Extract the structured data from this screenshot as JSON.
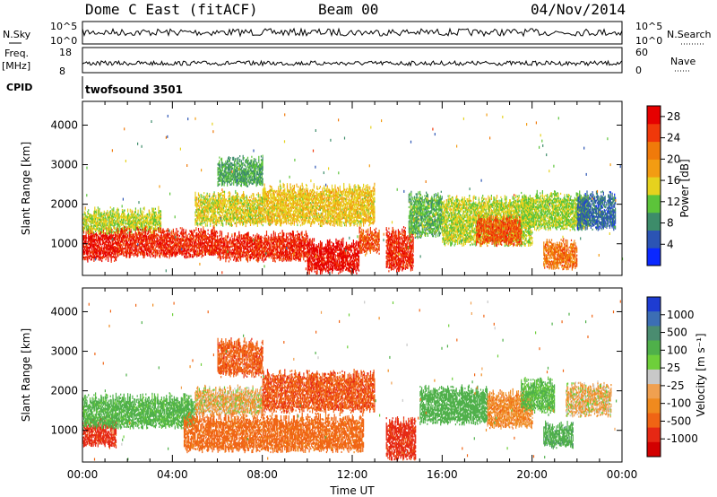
{
  "header": {
    "station": "Dome C East (fitACF)",
    "beam": "Beam 00",
    "date": "04/Nov/2014"
  },
  "status_panels": {
    "left_labels": {
      "nsky": "N.Sky",
      "freq": "Freq.",
      "mhz": "[MHz]",
      "cpid": "CPID"
    },
    "right_labels": {
      "nsearch": "N.Search",
      "nave": "Nave"
    },
    "nsky_ticks": [
      "10^5",
      "10^0"
    ],
    "freq_ticks": [
      "18",
      "8"
    ],
    "nave_ticks": [
      "60",
      "0"
    ],
    "cpid_text": "twofsound 3501"
  },
  "colors": {
    "power_scale": [
      "#0a28ff",
      "#2b54b4",
      "#3d8c6a",
      "#5cc43a",
      "#e6d21e",
      "#f39c12",
      "#f07a0a",
      "#f0380a",
      "#e60000"
    ],
    "velocity_scale": [
      "#1e3cd2",
      "#3c6eb4",
      "#4a8c70",
      "#4fb04a",
      "#6ecf3a",
      "#c8c8c8",
      "#f0a050",
      "#f08a1e",
      "#f06414",
      "#e62814",
      "#d20000"
    ]
  },
  "chart_data": [
    {
      "type": "heatmap",
      "panel": "power",
      "ylabel": "Slant Range [km]",
      "yticks": [
        "1000",
        "2000",
        "3000",
        "4000"
      ],
      "ylim": [
        200,
        4600
      ],
      "xlim": [
        0,
        24
      ],
      "colorbar_label": "Power [dB]",
      "colorbar_ticks": [
        "4",
        "8",
        "12",
        "16",
        "20",
        "24",
        "28"
      ],
      "colorbar_range": [
        0,
        30
      ],
      "bands": [
        {
          "t": [
            0,
            1.5
          ],
          "r": [
            600,
            1300
          ],
          "level": 27
        },
        {
          "t": [
            0,
            3.5
          ],
          "r": [
            1300,
            1800
          ],
          "level": 14
        },
        {
          "t": [
            1.5,
            6
          ],
          "r": [
            700,
            1300
          ],
          "level": 26
        },
        {
          "t": [
            5,
            8
          ],
          "r": [
            1500,
            2200
          ],
          "level": 15
        },
        {
          "t": [
            6,
            8
          ],
          "r": [
            2500,
            3100
          ],
          "level": 10
        },
        {
          "t": [
            6,
            10
          ],
          "r": [
            600,
            1200
          ],
          "level": 26
        },
        {
          "t": [
            10,
            12.3
          ],
          "r": [
            300,
            1000
          ],
          "level": 28
        },
        {
          "t": [
            12.3,
            13.2
          ],
          "r": [
            800,
            1300
          ],
          "level": 24
        },
        {
          "t": [
            8,
            13
          ],
          "r": [
            1500,
            2400
          ],
          "level": 16
        },
        {
          "t": [
            13.5,
            14.7
          ],
          "r": [
            350,
            1300
          ],
          "level": 26
        },
        {
          "t": [
            14.5,
            16
          ],
          "r": [
            1200,
            2200
          ],
          "level": 11
        },
        {
          "t": [
            16,
            20
          ],
          "r": [
            1000,
            2100
          ],
          "level": 14
        },
        {
          "t": [
            17.5,
            19.5
          ],
          "r": [
            1000,
            1600
          ],
          "level": 24
        },
        {
          "t": [
            19.5,
            22.5
          ],
          "r": [
            1400,
            2200
          ],
          "level": 13
        },
        {
          "t": [
            20.5,
            22
          ],
          "r": [
            400,
            1000
          ],
          "level": 22
        },
        {
          "t": [
            22,
            23.7
          ],
          "r": [
            1400,
            2200
          ],
          "level": 6
        }
      ]
    },
    {
      "type": "heatmap",
      "panel": "velocity",
      "ylabel": "Slant Range [km]",
      "yticks": [
        "1000",
        "2000",
        "3000",
        "4000"
      ],
      "ylim": [
        200,
        4600
      ],
      "xlim": [
        0,
        24
      ],
      "xticks": [
        "00:00",
        "04:00",
        "08:00",
        "12:00",
        "16:00",
        "20:00",
        "00:00"
      ],
      "xlabel": "Time UT",
      "colorbar_label": "Velocity [m s⁻¹]",
      "colorbar_ticks": [
        "1000",
        "500",
        "100",
        "25",
        "-25",
        "-100",
        "-500",
        "-1000"
      ],
      "bands": [
        {
          "t": [
            0,
            1.5
          ],
          "r": [
            600,
            1200
          ],
          "level": -300
        },
        {
          "t": [
            0,
            5
          ],
          "r": [
            1100,
            1800
          ],
          "level": 150
        },
        {
          "t": [
            5,
            8
          ],
          "r": [
            1400,
            2000
          ],
          "level": 5
        },
        {
          "t": [
            6,
            8
          ],
          "r": [
            2400,
            3200
          ],
          "level": -200
        },
        {
          "t": [
            4.5,
            12.5
          ],
          "r": [
            500,
            1300
          ],
          "level": -150
        },
        {
          "t": [
            8,
            13
          ],
          "r": [
            1500,
            2400
          ],
          "level": -220
        },
        {
          "t": [
            13.5,
            14.8
          ],
          "r": [
            300,
            1200
          ],
          "level": -300
        },
        {
          "t": [
            15,
            18
          ],
          "r": [
            1200,
            2000
          ],
          "level": 180
        },
        {
          "t": [
            18,
            20
          ],
          "r": [
            1100,
            1900
          ],
          "level": -60
        },
        {
          "t": [
            19.5,
            21
          ],
          "r": [
            1500,
            2200
          ],
          "level": 120
        },
        {
          "t": [
            20.5,
            21.8
          ],
          "r": [
            600,
            1100
          ],
          "level": 200
        },
        {
          "t": [
            21.5,
            23.5
          ],
          "r": [
            1400,
            2100
          ],
          "level": 5
        }
      ]
    }
  ]
}
